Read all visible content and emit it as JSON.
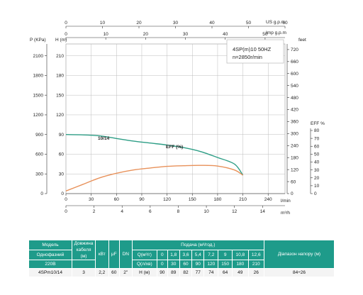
{
  "chart_data": {
    "type": "line",
    "top_axes": [
      {
        "label": "US g.p.m",
        "ticks": [
          "0",
          "10",
          "20",
          "30",
          "40",
          "50",
          "60"
        ],
        "max": 60
      },
      {
        "label": "Imp g.p.m",
        "ticks": [
          "0",
          "10",
          "20",
          "30",
          "40",
          "50"
        ],
        "max": 55
      }
    ],
    "x_primary": {
      "label": "l/min",
      "ticks": [
        "0",
        "30",
        "60",
        "90",
        "120",
        "150",
        "180",
        "210",
        "240"
      ],
      "max": 260
    },
    "x_secondary": {
      "label": "m³/h",
      "ticks": [
        "0",
        "2",
        "4",
        "6",
        "8",
        "10",
        "12",
        "14"
      ],
      "max": 15.6
    },
    "left_axes": [
      {
        "label": "P (KPa)",
        "ticks": [
          "0",
          "300",
          "600",
          "900",
          "1200",
          "1500",
          "1800",
          "2100"
        ]
      },
      {
        "label": "H (m)",
        "ticks": [
          "0",
          "30",
          "60",
          "90",
          "120",
          "150",
          "180",
          "210"
        ]
      }
    ],
    "ylim": [
      0,
      228
    ],
    "right_axis_feet": {
      "label": "feet",
      "ticks": [
        "0",
        "60",
        "120",
        "180",
        "240",
        "300",
        "360",
        "420",
        "480",
        "540",
        "600",
        "660",
        "720"
      ]
    },
    "right_axis_eff": {
      "label": "EFF %",
      "ticks": [
        "0",
        "10",
        "20",
        "30",
        "40",
        "50",
        "60",
        "70",
        "80"
      ],
      "max": 80
    },
    "info_box": {
      "model": "4SP(m)10  50HZ",
      "speed": "n=2850r/min"
    },
    "series": [
      {
        "name": "10/14",
        "color": "#2e9e86",
        "x": [
          0,
          20,
          40,
          60,
          80,
          100,
          120,
          140,
          160,
          180,
          200,
          210
        ],
        "y": [
          90,
          89.5,
          88,
          84,
          80,
          77,
          74,
          70,
          64,
          55,
          45,
          28
        ]
      },
      {
        "name": "EFF (%)",
        "color": "#e8915a",
        "x": [
          0,
          20,
          40,
          60,
          80,
          100,
          120,
          140,
          160,
          180,
          200,
          210
        ],
        "y": [
          4,
          14,
          24,
          31,
          36,
          39,
          41.5,
          42.5,
          43,
          42,
          36,
          28
        ]
      }
    ],
    "grid": true
  },
  "table": {
    "header_row1": {
      "model": "Модель",
      "cable": "Довжина кабеля",
      "kw": "кВт",
      "uf": "μF",
      "dn": "DN",
      "flow": "Подача (м³/год.)",
      "range": "Діапазон напору (м)"
    },
    "header_row2": {
      "single_phase": "Однофазний",
      "cable_unit": "(м)",
      "q_m3h": "Q(м³/г)",
      "q_values": [
        "0",
        "1,8",
        "3,6",
        "5,4",
        "7,2",
        "9",
        "10,8",
        "12,6"
      ]
    },
    "header_row3": {
      "voltage": "220В",
      "q_lmin": "Q(л/хв)",
      "q_lmin_values": [
        "0",
        "30",
        "60",
        "90",
        "120",
        "150",
        "180",
        "210"
      ]
    },
    "data_row": {
      "model": "4SPm10/14",
      "cable": "3",
      "kw": "2,2",
      "uf": "60",
      "dn": "2\"",
      "h_label": "H (м)",
      "h_values": [
        "90",
        "89",
        "82",
        "77",
        "74",
        "64",
        "49",
        "26"
      ],
      "range": "84÷26"
    }
  }
}
